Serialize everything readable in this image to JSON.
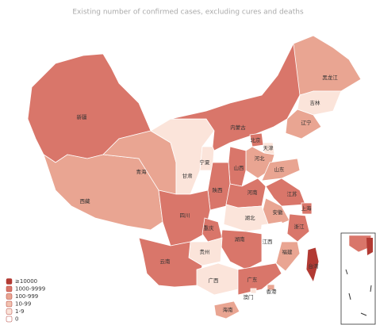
{
  "title": "Existing number of confirmed cases, excluding cures and deaths",
  "legend": [
    {
      "label": "≥10000",
      "color": "#b23a33"
    },
    {
      "label": "1000-9999",
      "color": "#d9766a"
    },
    {
      "label": "100-999",
      "color": "#e9a592"
    },
    {
      "label": "10-99",
      "color": "#f2c2b0"
    },
    {
      "label": "1-9",
      "color": "#fbe4da"
    },
    {
      "label": "0",
      "color": "#ffffff"
    }
  ],
  "provinces": [
    {
      "name": "新疆",
      "color": "#d9766a"
    },
    {
      "name": "西藏",
      "color": "#e9a592"
    },
    {
      "name": "青海",
      "color": "#e9a592"
    },
    {
      "name": "甘肃",
      "color": "#fbe4da"
    },
    {
      "name": "宁夏",
      "color": "#fbe4da"
    },
    {
      "name": "内蒙古",
      "color": "#d9766a"
    },
    {
      "name": "黑龙江",
      "color": "#e9a592"
    },
    {
      "name": "吉林",
      "color": "#fbe4da"
    },
    {
      "name": "辽宁",
      "color": "#e9a592"
    },
    {
      "name": "北京",
      "color": "#d9766a"
    },
    {
      "name": "天津",
      "color": "#fbe4da"
    },
    {
      "name": "河北",
      "color": "#e9a592"
    },
    {
      "name": "山西",
      "color": "#d9766a"
    },
    {
      "name": "山东",
      "color": "#e9a592"
    },
    {
      "name": "陕西",
      "color": "#d9766a"
    },
    {
      "name": "河南",
      "color": "#d9766a"
    },
    {
      "name": "江苏",
      "color": "#d9766a"
    },
    {
      "name": "上海",
      "color": "#d9766a"
    },
    {
      "name": "安徽",
      "color": "#e9a592"
    },
    {
      "name": "湖北",
      "color": "#fbe4da"
    },
    {
      "name": "四川",
      "color": "#d9766a"
    },
    {
      "name": "重庆",
      "color": "#d9766a"
    },
    {
      "name": "浙江",
      "color": "#d9766a"
    },
    {
      "name": "江西",
      "color": "#ffffff"
    },
    {
      "name": "湖南",
      "color": "#d9766a"
    },
    {
      "name": "贵州",
      "color": "#fbe4da"
    },
    {
      "name": "云南",
      "color": "#d9766a"
    },
    {
      "name": "福建",
      "color": "#e9a592"
    },
    {
      "name": "广西",
      "color": "#fbe4da"
    },
    {
      "name": "广东",
      "color": "#d9766a"
    },
    {
      "name": "香港",
      "color": "#e9a592"
    },
    {
      "name": "澳门",
      "color": "#fbe4da"
    },
    {
      "name": "台湾",
      "color": "#b23a33"
    },
    {
      "name": "海南",
      "color": "#e9a592"
    }
  ]
}
